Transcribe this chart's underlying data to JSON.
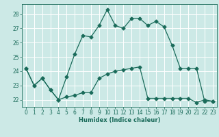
{
  "title": "",
  "xlabel": "Humidex (Indice chaleur)",
  "background_color": "#cce9e6",
  "grid_color": "#ffffff",
  "line_color": "#1a6b5a",
  "xlim": [
    -0.5,
    23.5
  ],
  "ylim": [
    21.5,
    28.7
  ],
  "xticks": [
    0,
    1,
    2,
    3,
    4,
    5,
    6,
    7,
    8,
    9,
    10,
    11,
    12,
    13,
    14,
    15,
    16,
    17,
    18,
    19,
    20,
    21,
    22,
    23
  ],
  "yticks": [
    22,
    23,
    24,
    25,
    26,
    27,
    28
  ],
  "line1_x": [
    0,
    1,
    2,
    3,
    4,
    5,
    6,
    7,
    8,
    9,
    10,
    11,
    12,
    13,
    14,
    15,
    16,
    17,
    18,
    19,
    20,
    21,
    22,
    23
  ],
  "line1_y": [
    24.2,
    23.0,
    23.5,
    22.7,
    22.0,
    23.6,
    25.2,
    26.5,
    26.4,
    27.2,
    28.3,
    27.2,
    27.0,
    27.7,
    27.7,
    27.2,
    27.5,
    27.1,
    25.8,
    24.2,
    24.2,
    24.2,
    21.9,
    21.9
  ],
  "line2_x": [
    0,
    1,
    2,
    3,
    4,
    5,
    6,
    7,
    8,
    9,
    10,
    11,
    12,
    13,
    14,
    15,
    16,
    17,
    18,
    19,
    20,
    21,
    22,
    23
  ],
  "line2_y": [
    24.2,
    23.0,
    23.5,
    22.7,
    22.0,
    22.2,
    22.3,
    22.5,
    22.5,
    23.5,
    23.8,
    24.0,
    24.1,
    24.2,
    24.3,
    22.1,
    22.1,
    22.1,
    22.1,
    22.1,
    22.1,
    21.8,
    22.0,
    21.9
  ],
  "marker_size": 2.5,
  "line_width": 0.9,
  "tick_fontsize": 5.5,
  "xlabel_fontsize": 6.0
}
